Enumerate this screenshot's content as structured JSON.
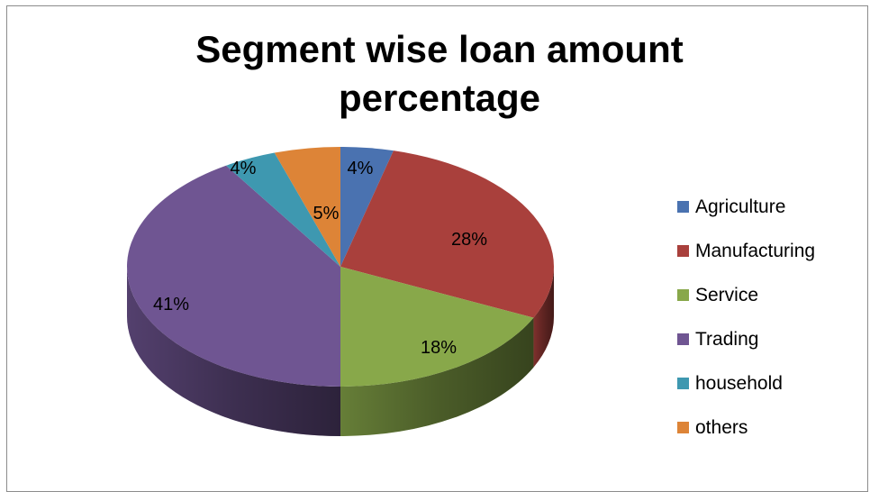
{
  "chart_data": {
    "type": "pie",
    "title_lines": [
      "Segment wise loan amount",
      "percentage"
    ],
    "categories": [
      "Agriculture",
      "Manufacturing",
      "Service",
      "Trading",
      "household",
      "others"
    ],
    "values": [
      4,
      28,
      18,
      41,
      4,
      5
    ],
    "data_labels": [
      "4%",
      "28%",
      "18%",
      "41%",
      "4%",
      "5%"
    ],
    "colors": [
      "#4a72b0",
      "#a9403c",
      "#88a84a",
      "#6f5592",
      "#3e98b0",
      "#dd8437"
    ],
    "legend_position": "right",
    "style": "3d"
  }
}
